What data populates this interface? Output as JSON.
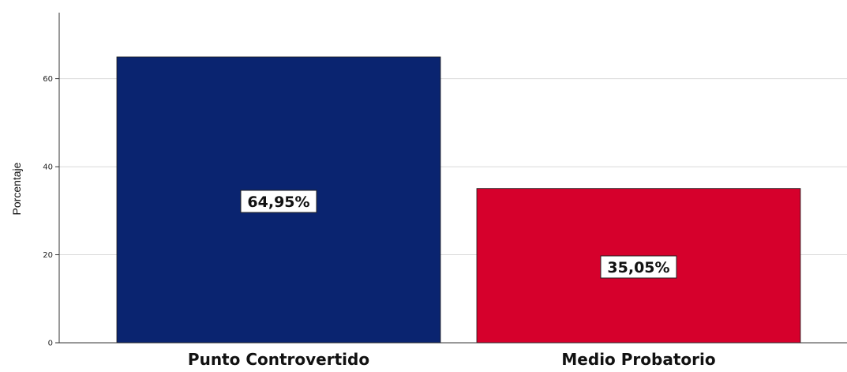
{
  "chart_data": {
    "type": "bar",
    "categories": [
      "Punto Controvertido",
      "Medio Probatorio"
    ],
    "values": [
      64.95,
      35.05
    ],
    "data_labels": [
      "64,95%",
      "35,05%"
    ],
    "colors": [
      "#0a2470",
      "#d6002c"
    ],
    "title": "",
    "xlabel": "",
    "ylabel": "Porcentaje",
    "ylim": [
      0,
      75
    ],
    "yticks": [
      0,
      20,
      40,
      60
    ],
    "ytick_labels": [
      "0",
      "20",
      "40",
      "60"
    ],
    "grid": true,
    "legend": "none"
  }
}
